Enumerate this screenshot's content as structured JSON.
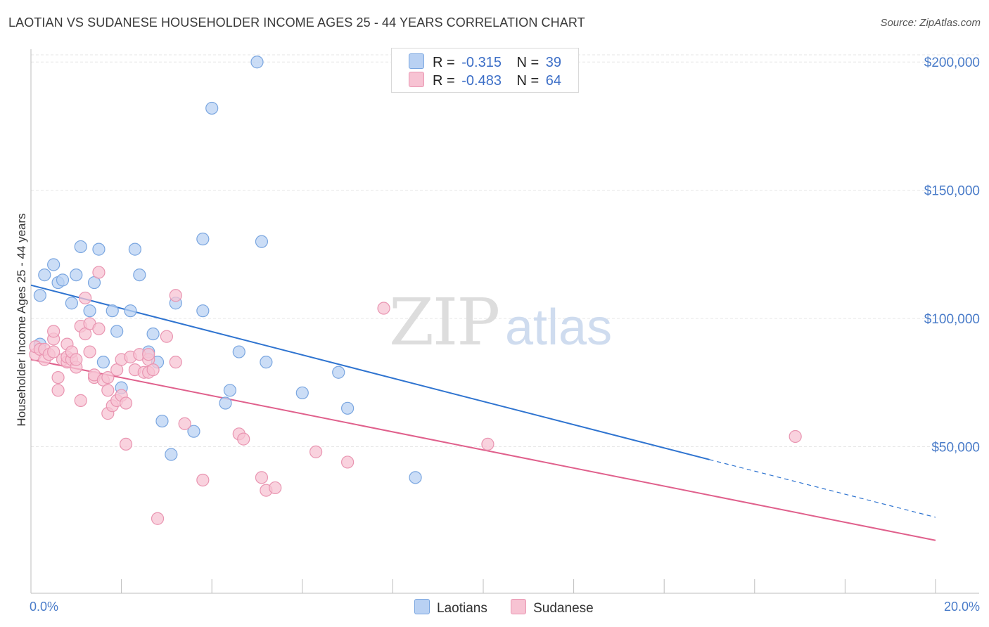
{
  "header": {
    "title": "LAOTIAN VS SUDANESE HOUSEHOLDER INCOME AGES 25 - 44 YEARS CORRELATION CHART",
    "source": "Source: ZipAtlas.com"
  },
  "legend": {
    "rows": [
      {
        "r_label": "R =",
        "r_value": "-0.315",
        "n_label": "N =",
        "n_value": "39"
      },
      {
        "r_label": "R =",
        "r_value": "-0.483",
        "n_label": "N =",
        "n_value": "64"
      }
    ],
    "bottom": [
      "Laotians",
      "Sudanese"
    ]
  },
  "colors": {
    "laotian_fill": "#b9d1f3",
    "laotian_stroke": "#7aa6e0",
    "laotian_line": "#2f74d0",
    "sudanese_fill": "#f7c3d3",
    "sudanese_stroke": "#e995b1",
    "sudanese_line": "#e0608c",
    "tick_text": "#4a7cc9"
  },
  "chart_data": {
    "type": "scatter",
    "title": "LAOTIAN VS SUDANESE HOUSEHOLDER INCOME AGES 25 - 44 YEARS CORRELATION CHART",
    "ylabel": "Householder Income Ages 25 - 44 years",
    "xlim": [
      0,
      20
    ],
    "ylim": [
      0,
      205000
    ],
    "x_tick_labels": [
      "0.0%",
      "20.0%"
    ],
    "y_ticks": [
      50000,
      100000,
      150000,
      200000
    ],
    "y_tick_labels": [
      "$50,000",
      "$100,000",
      "$150,000",
      "$200,000"
    ],
    "grid": true,
    "legend_position": "top-center",
    "series": [
      {
        "name": "Laotians",
        "points": [
          [
            0.2,
            90000
          ],
          [
            0.2,
            109000
          ],
          [
            0.3,
            117000
          ],
          [
            0.5,
            121000
          ],
          [
            0.6,
            114000
          ],
          [
            0.7,
            115000
          ],
          [
            0.9,
            106000
          ],
          [
            1.0,
            117000
          ],
          [
            1.1,
            128000
          ],
          [
            1.3,
            103000
          ],
          [
            1.4,
            114000
          ],
          [
            1.5,
            127000
          ],
          [
            1.6,
            83000
          ],
          [
            1.8,
            103000
          ],
          [
            1.9,
            95000
          ],
          [
            2.0,
            73000
          ],
          [
            2.2,
            103000
          ],
          [
            2.3,
            127000
          ],
          [
            2.4,
            117000
          ],
          [
            2.6,
            87000
          ],
          [
            2.7,
            94000
          ],
          [
            2.8,
            83000
          ],
          [
            2.9,
            60000
          ],
          [
            3.1,
            47000
          ],
          [
            3.2,
            106000
          ],
          [
            3.6,
            56000
          ],
          [
            3.8,
            103000
          ],
          [
            3.8,
            131000
          ],
          [
            4.0,
            182000
          ],
          [
            4.3,
            67000
          ],
          [
            4.4,
            72000
          ],
          [
            4.6,
            87000
          ],
          [
            5.0,
            200000
          ],
          [
            5.1,
            130000
          ],
          [
            5.2,
            83000
          ],
          [
            6.0,
            71000
          ],
          [
            6.8,
            79000
          ],
          [
            7.0,
            65000
          ],
          [
            8.5,
            38000
          ]
        ],
        "trend": {
          "x": [
            0,
            15
          ],
          "y": [
            113000,
            45000
          ]
        },
        "trend_dashed": {
          "x": [
            15,
            20
          ],
          "y": [
            45000,
            22500
          ]
        }
      },
      {
        "name": "Sudanese",
        "points": [
          [
            0.1,
            86000
          ],
          [
            0.1,
            89000
          ],
          [
            0.2,
            88000
          ],
          [
            0.3,
            84000
          ],
          [
            0.3,
            88000
          ],
          [
            0.4,
            86000
          ],
          [
            0.5,
            87000
          ],
          [
            0.5,
            92000
          ],
          [
            0.5,
            95000
          ],
          [
            0.6,
            72000
          ],
          [
            0.6,
            77000
          ],
          [
            0.7,
            84000
          ],
          [
            0.8,
            83000
          ],
          [
            0.8,
            85000
          ],
          [
            0.8,
            90000
          ],
          [
            0.9,
            84000
          ],
          [
            0.9,
            87000
          ],
          [
            1.0,
            81000
          ],
          [
            1.0,
            84000
          ],
          [
            1.1,
            68000
          ],
          [
            1.1,
            97000
          ],
          [
            1.2,
            94000
          ],
          [
            1.2,
            108000
          ],
          [
            1.3,
            87000
          ],
          [
            1.3,
            98000
          ],
          [
            1.4,
            77000
          ],
          [
            1.4,
            78000
          ],
          [
            1.5,
            118000
          ],
          [
            1.5,
            96000
          ],
          [
            1.6,
            76000
          ],
          [
            1.7,
            63000
          ],
          [
            1.7,
            72000
          ],
          [
            1.7,
            77000
          ],
          [
            1.8,
            66000
          ],
          [
            1.9,
            68000
          ],
          [
            1.9,
            80000
          ],
          [
            2.0,
            84000
          ],
          [
            2.0,
            70000
          ],
          [
            2.1,
            51000
          ],
          [
            2.1,
            67000
          ],
          [
            2.2,
            85000
          ],
          [
            2.3,
            80000
          ],
          [
            2.4,
            86000
          ],
          [
            2.5,
            79000
          ],
          [
            2.6,
            84000
          ],
          [
            2.6,
            79000
          ],
          [
            2.6,
            86000
          ],
          [
            2.7,
            80000
          ],
          [
            2.8,
            22000
          ],
          [
            3.0,
            93000
          ],
          [
            3.2,
            109000
          ],
          [
            3.2,
            83000
          ],
          [
            3.4,
            59000
          ],
          [
            3.8,
            37000
          ],
          [
            4.6,
            55000
          ],
          [
            4.7,
            53000
          ],
          [
            5.1,
            38000
          ],
          [
            5.2,
            33000
          ],
          [
            5.4,
            34000
          ],
          [
            6.3,
            48000
          ],
          [
            7.0,
            44000
          ],
          [
            7.8,
            104000
          ],
          [
            10.1,
            51000
          ],
          [
            16.9,
            54000
          ]
        ],
        "trend": {
          "x": [
            0,
            20
          ],
          "y": [
            84000,
            13500
          ]
        }
      }
    ]
  }
}
